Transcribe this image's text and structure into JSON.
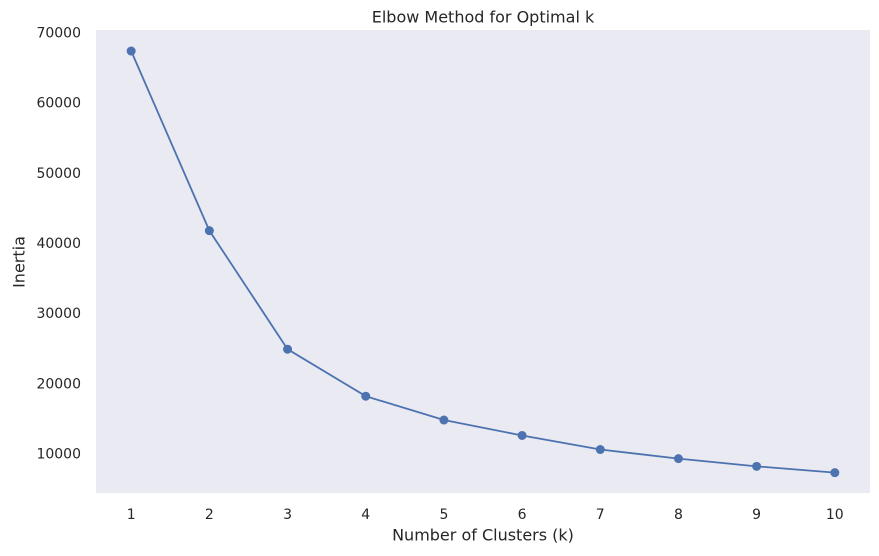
{
  "chart_data": {
    "type": "line",
    "title": "Elbow Method for Optimal k",
    "x_label": "Number of Clusters (k)",
    "y_label": "Inertia",
    "x": [
      1,
      2,
      3,
      4,
      5,
      6,
      7,
      8,
      9,
      10
    ],
    "series": [
      {
        "name": "Inertia",
        "color": "#4c72b0",
        "values": [
          67500,
          41900,
          25000,
          18300,
          14900,
          12700,
          10700,
          9400,
          8300,
          7400
        ]
      }
    ],
    "xlim": [
      0.55,
      10.45
    ],
    "xticks": [
      1,
      2,
      3,
      4,
      5,
      6,
      7,
      8,
      9,
      10
    ],
    "ylim": [
      4500,
      70500
    ],
    "yticks": [
      10000,
      20000,
      30000,
      40000,
      50000,
      60000,
      70000
    ],
    "grid": false,
    "background": "#eaeaf2",
    "markers": true
  }
}
